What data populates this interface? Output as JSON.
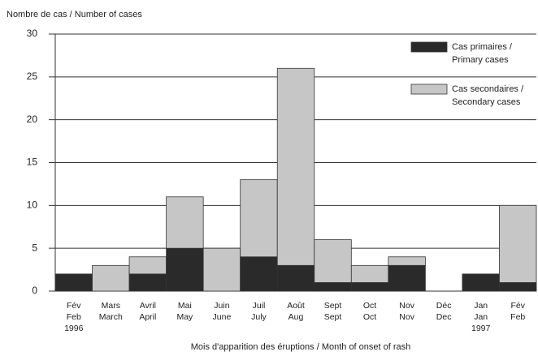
{
  "chart_data": {
    "type": "stacked_bar",
    "title": "Nombre de cas / Number of cases",
    "x_label": "Mois d'apparition des éruptions / Month of onset of rash",
    "categories": [
      [
        "Fév",
        "Feb",
        "1996"
      ],
      [
        "Mars",
        "March"
      ],
      [
        "Avril",
        "April"
      ],
      [
        "Mai",
        "May"
      ],
      [
        "Juin",
        "June"
      ],
      [
        "Juil",
        "July"
      ],
      [
        "Août",
        "Aug"
      ],
      [
        "Sept",
        "Sept"
      ],
      [
        "Oct",
        "Oct"
      ],
      [
        "Nov",
        "Nov"
      ],
      [
        "Déc",
        "Dec"
      ],
      [
        "Jan",
        "Jan",
        "1997"
      ],
      [
        "Fév",
        "Feb"
      ]
    ],
    "series": [
      {
        "name": [
          "Cas primaires /",
          "Primary cases"
        ],
        "color": "#2a2a2a",
        "values": [
          2,
          0,
          2,
          5,
          0,
          4,
          3,
          1,
          1,
          3,
          0,
          2,
          1
        ]
      },
      {
        "name": [
          "Cas secondaires /",
          "Secondary cases"
        ],
        "color": "#c6c6c6",
        "values": [
          0,
          3,
          2,
          6,
          5,
          9,
          23,
          5,
          2,
          1,
          0,
          0,
          9
        ]
      }
    ],
    "ylim": [
      0,
      30
    ],
    "yticks": [
      0,
      5,
      10,
      15,
      20,
      25,
      30
    ],
    "grid": true,
    "legend": "upper right"
  }
}
